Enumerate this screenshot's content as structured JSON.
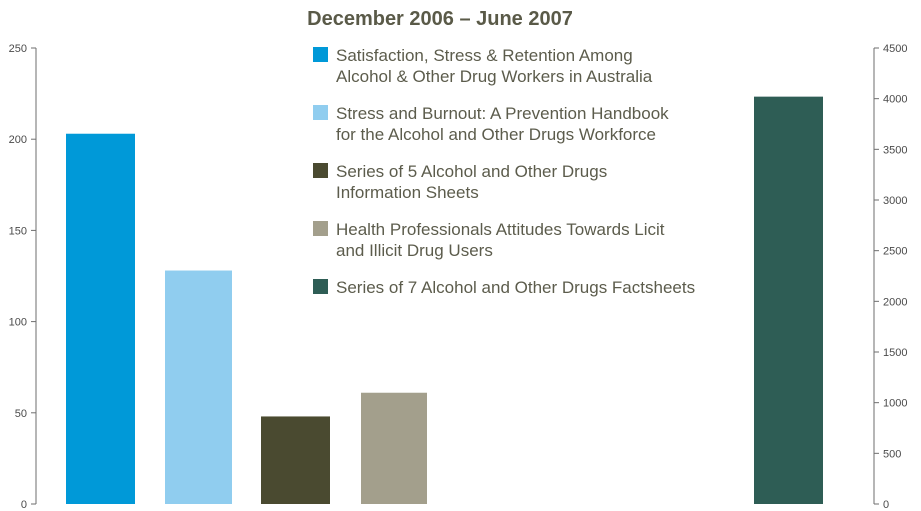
{
  "chart_data": {
    "type": "bar",
    "title": "December 2006 – June 2007",
    "xlabel": "",
    "ylabel": "",
    "left_axis": {
      "ylim": [
        0,
        250
      ],
      "ticks": [
        "0",
        "50",
        "100",
        "150",
        "200",
        "250"
      ]
    },
    "right_axis": {
      "ylim": [
        0,
        4500
      ],
      "ticks": [
        "0",
        "500",
        "1000",
        "1500",
        "2000",
        "2500",
        "3000",
        "3500",
        "4000",
        "4500"
      ]
    },
    "grid": false,
    "legend_position": "top-center",
    "series": [
      {
        "name_lines": [
          "Satisfaction, Stress & Retention Among",
          "Alcohol & Other Drug Workers in Australia"
        ],
        "value": 203,
        "axis": "left",
        "color": "#0099d8"
      },
      {
        "name_lines": [
          "Stress and Burnout: A Prevention Handbook",
          "for the Alcohol and Other Drugs Workforce"
        ],
        "value": 128,
        "axis": "left",
        "color": "#90cdef"
      },
      {
        "name_lines": [
          "Series of 5 Alcohol and Other Drugs",
          "Information Sheets"
        ],
        "value": 48,
        "axis": "left",
        "color": "#4a4a30"
      },
      {
        "name_lines": [
          "Health Professionals Attitudes Towards Licit",
          "and Illicit Drug Users"
        ],
        "value": 61,
        "axis": "left",
        "color": "#a39f8c"
      },
      {
        "name_lines": [
          "Series of 7 Alcohol and Other Drugs Factsheets"
        ],
        "value": 4020,
        "axis": "right",
        "color": "#2e5d55"
      }
    ]
  }
}
